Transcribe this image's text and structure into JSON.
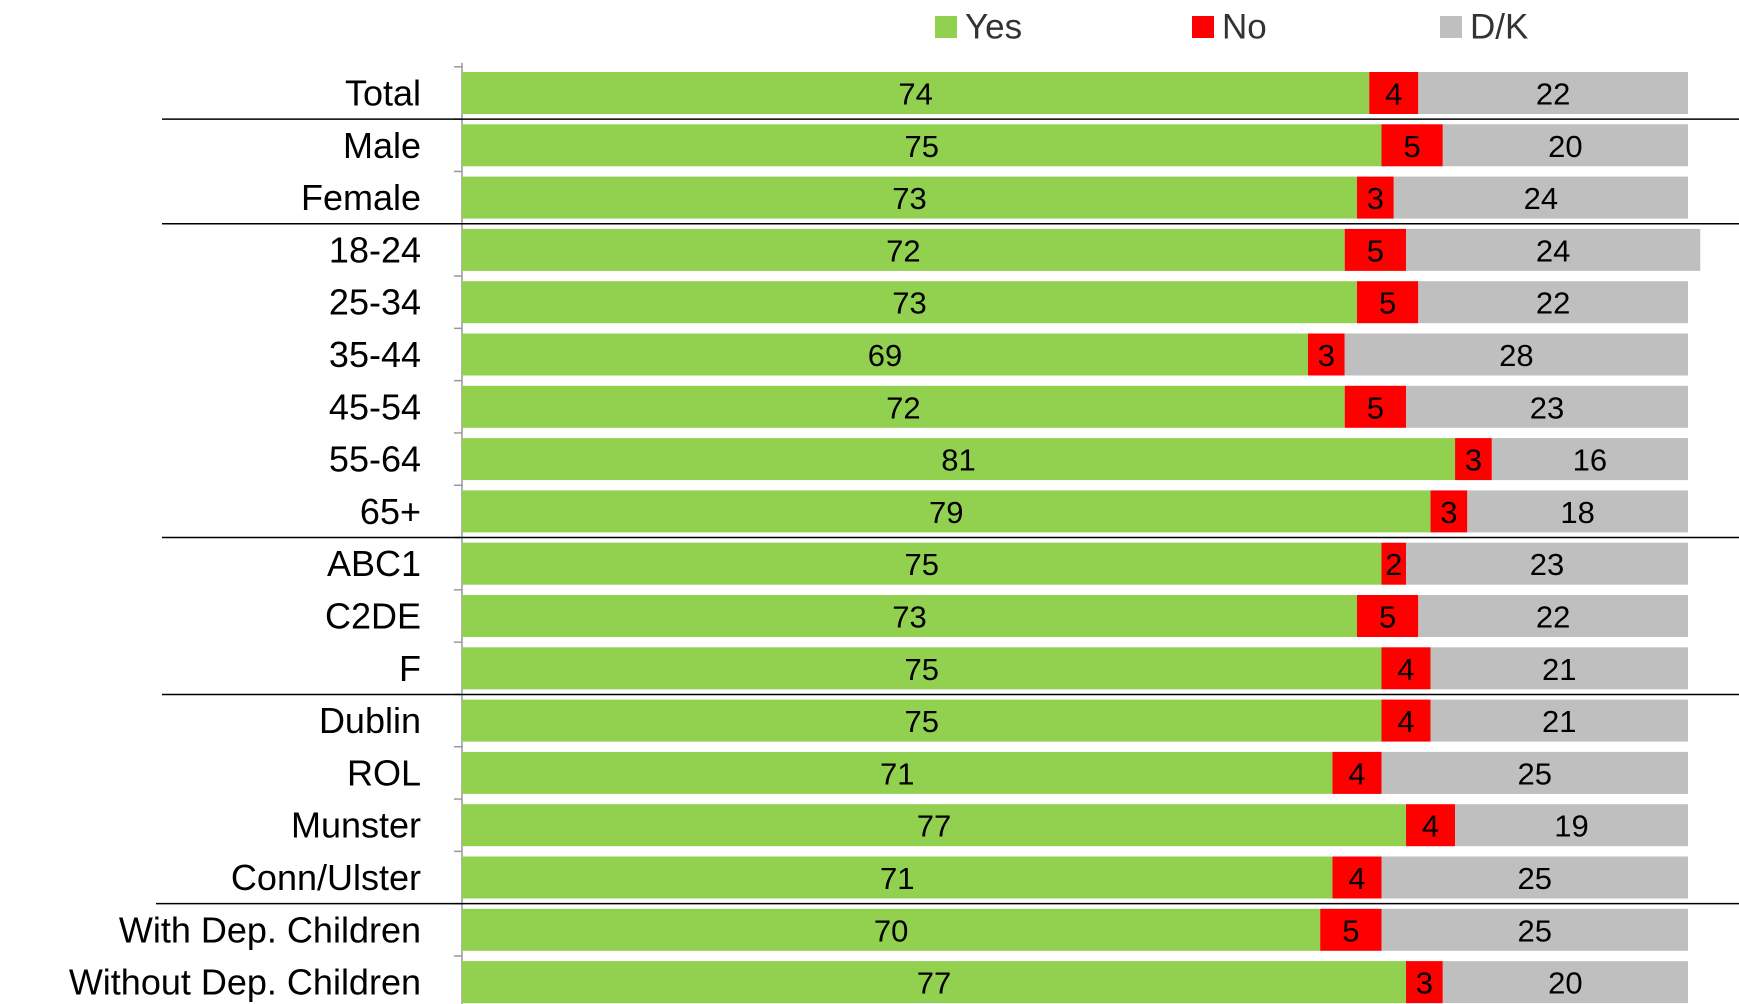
{
  "chart_data": {
    "type": "stacked-bar-horizontal",
    "categories": [
      "Total",
      "Male",
      "Female",
      "18-24",
      "25-34",
      "35-44",
      "45-54",
      "55-64",
      "65+",
      "ABC1",
      "C2DE",
      "F",
      "Dublin",
      "ROL",
      "Munster",
      "Conn/Ulster",
      "With Dep. Children",
      "Without Dep. Children"
    ],
    "series": [
      {
        "name": "Yes",
        "color": "#92d050",
        "values": [
          74,
          75,
          73,
          72,
          73,
          69,
          72,
          81,
          79,
          75,
          73,
          75,
          75,
          71,
          77,
          71,
          70,
          77
        ]
      },
      {
        "name": "No",
        "color": "#ff0000",
        "values": [
          4,
          5,
          3,
          5,
          5,
          3,
          5,
          3,
          3,
          2,
          5,
          4,
          4,
          4,
          4,
          4,
          5,
          3
        ]
      },
      {
        "name": "D/K",
        "color": "#bfbfbf",
        "values": [
          22,
          20,
          24,
          24,
          22,
          28,
          23,
          16,
          18,
          23,
          22,
          21,
          21,
          25,
          19,
          25,
          25,
          20
        ]
      }
    ],
    "xlim": [
      0,
      100
    ],
    "legend": "top"
  }
}
